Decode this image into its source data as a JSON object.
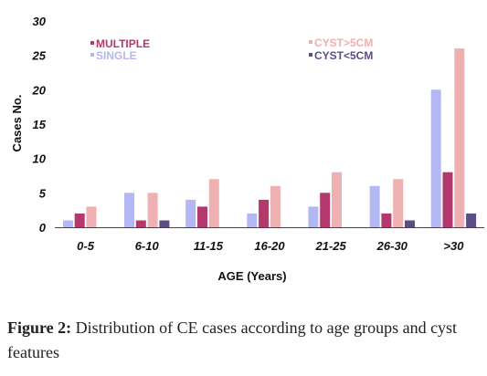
{
  "chart_data": {
    "type": "bar",
    "title": "",
    "xlabel": "AGE (Years)",
    "ylabel": "Cases No.",
    "ylim": [
      0,
      30
    ],
    "yticks": [
      0,
      5,
      10,
      15,
      20,
      25,
      30
    ],
    "grid": false,
    "legend_position": "top",
    "categories": [
      "0-5",
      "6-10",
      "11-15",
      "16-20",
      "21-25",
      "26-30",
      ">30"
    ],
    "series": [
      {
        "name": "SINGLE",
        "color": "#b3b7f2",
        "values": [
          1,
          5,
          4,
          2,
          3,
          6,
          20
        ]
      },
      {
        "name": "MULTIPLE",
        "color": "#b3386e",
        "values": [
          2,
          1,
          3,
          4,
          5,
          2,
          8
        ]
      },
      {
        "name": "CYST>5CM",
        "color": "#eeb0b0",
        "values": [
          3,
          5,
          7,
          6,
          8,
          7,
          26
        ]
      },
      {
        "name": "CYST<5CM",
        "color": "#5c4d85",
        "values": [
          0,
          1,
          0,
          0,
          0,
          1,
          2
        ]
      }
    ],
    "legend": [
      {
        "label": "MULTIPLE",
        "color": "#b3386e"
      },
      {
        "label": "SINGLE",
        "color": "#b3b7f2"
      },
      {
        "label": "CYST>5CM",
        "color": "#eeb0b0"
      },
      {
        "label": "CYST<5CM",
        "color": "#5c4d85"
      }
    ]
  },
  "caption": {
    "label": "Figure 2:",
    "text": " Distribution of CE cases according to age groups and cyst features"
  }
}
